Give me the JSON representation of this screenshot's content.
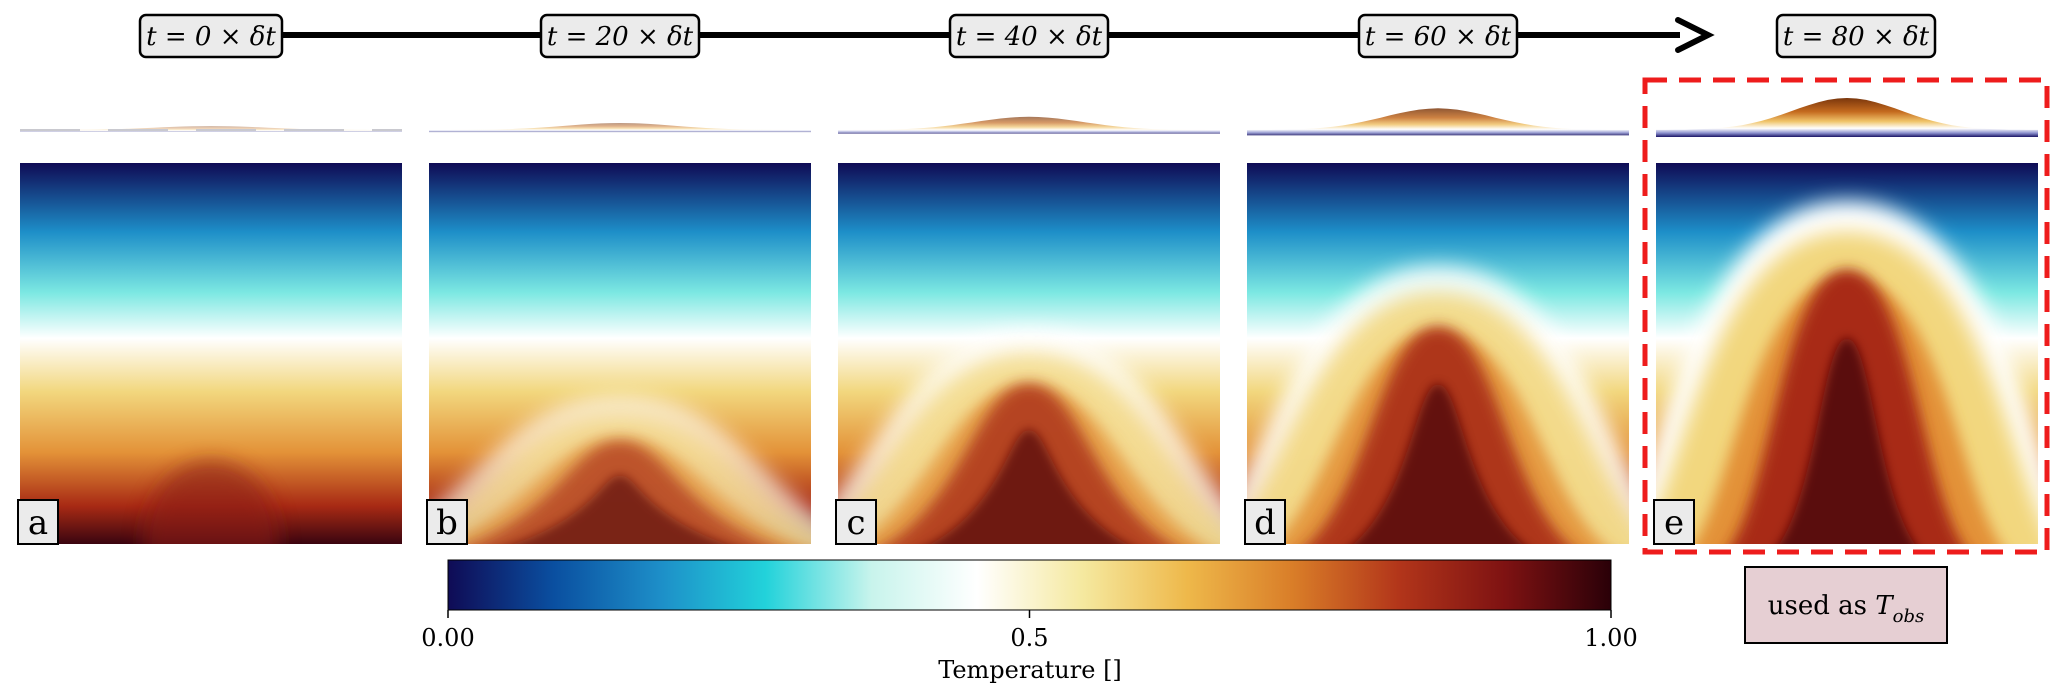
{
  "timeline": {
    "labels": [
      "t = 0 × δt",
      "t = 20 × δt",
      "t = 40 × δt",
      "t = 60 × δt",
      "t = 80 × δt"
    ]
  },
  "panels": [
    {
      "letter": "a",
      "step": 0
    },
    {
      "letter": "b",
      "step": 20
    },
    {
      "letter": "c",
      "step": 40
    },
    {
      "letter": "d",
      "step": 60
    },
    {
      "letter": "e",
      "step": 80
    }
  ],
  "colorbar": {
    "title": "Temperature []",
    "ticks": [
      "0.00",
      "0.5",
      "1.00"
    ],
    "stops": [
      "#0f0b55",
      "#0a4fa0",
      "#1d8ec8",
      "#22d2da",
      "#c8f4ec",
      "#ffffff",
      "#f5e9a0",
      "#eeb84a",
      "#d97d28",
      "#b2351a",
      "#7e1212",
      "#2a0008"
    ],
    "range": [
      0,
      1
    ]
  },
  "note": {
    "prefix": "used as ",
    "symbol": "T",
    "subscript": "obs"
  },
  "colors": {
    "highlight": "#ee1c1c",
    "note_fill": "#e6cfd3",
    "label_fill": "#ebebeb"
  }
}
